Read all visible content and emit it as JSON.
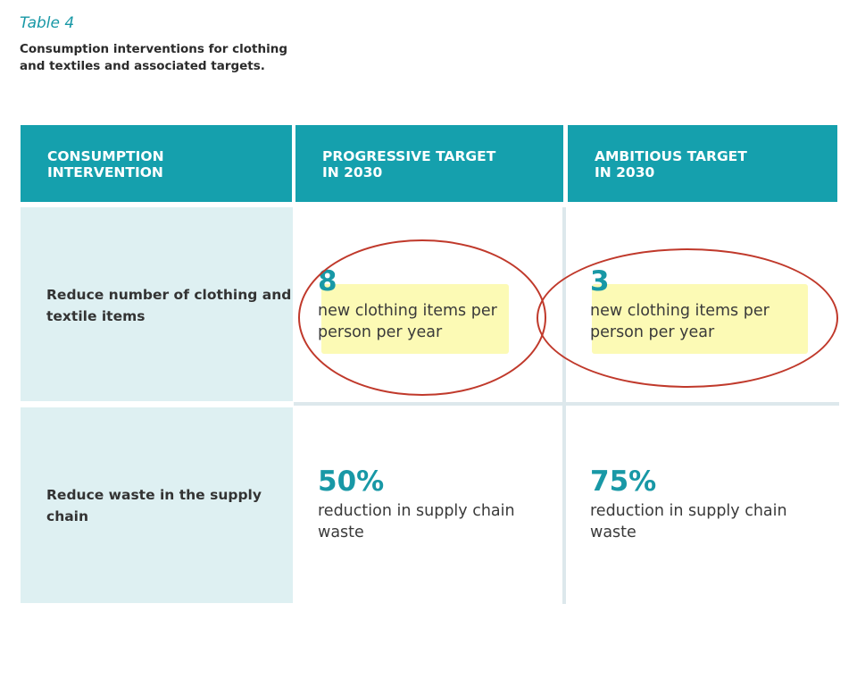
{
  "table_label": "Table 4",
  "caption": "Consumption interventions for clothing and textiles and associated targets.",
  "headers": [
    "CONSUMPTION\nINTERVENTION",
    "PROGRESSIVE TARGET\nIN 2030",
    "AMBITIOUS TARGET\nIN 2030"
  ],
  "rows": [
    {
      "intervention": "Reduce number of clothing and textile items",
      "progressive": {
        "value": "8",
        "text": "new clothing items per person per year"
      },
      "ambitious": {
        "value": "3",
        "text": "new clothing items per person per year"
      }
    },
    {
      "intervention": "Reduce waste in the supply chain",
      "progressive": {
        "value": "50%",
        "text": "reduction in supply chain waste"
      },
      "ambitious": {
        "value": "75%",
        "text": "reduction in supply chain waste"
      }
    }
  ],
  "colors": {
    "header_bg": "#15a0ad",
    "accent_text": "#1898a6",
    "label_bg": "#def0f2",
    "annotation_circle": "#c0392b",
    "highlight": "#faf578"
  }
}
